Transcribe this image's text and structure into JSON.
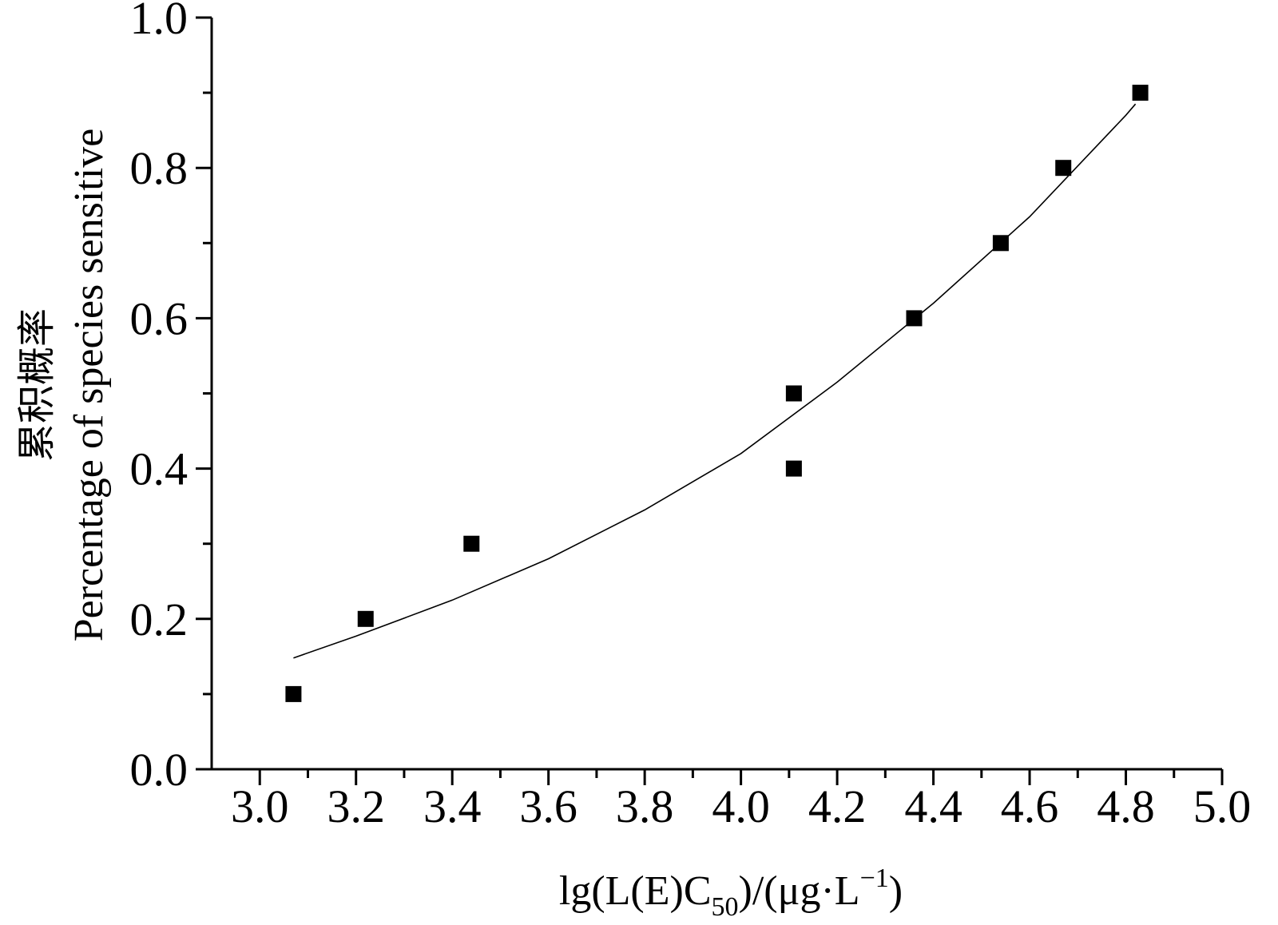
{
  "chart_data": {
    "type": "scatter",
    "xlabel": {
      "prefix": "lg(L(E)C",
      "subscript": "50",
      "suffix": ")/(μg·L",
      "superscript": "−1",
      "end": ")"
    },
    "ylabel": {
      "line1": "累积概率",
      "line2": "Percentage of species sensitive"
    },
    "xlim": [
      2.9,
      5.0
    ],
    "ylim": [
      0.0,
      1.0
    ],
    "x_ticks": [
      "3.0",
      "3.2",
      "3.4",
      "3.6",
      "3.8",
      "4.0",
      "4.2",
      "4.4",
      "4.6",
      "4.8",
      "5.0"
    ],
    "y_ticks": [
      "0.0",
      "0.2",
      "0.4",
      "0.6",
      "0.8",
      "1.0"
    ],
    "grid": false,
    "legend": "none",
    "series": [
      {
        "kind": "points",
        "marker": "square",
        "color": "#000000",
        "x": [
          3.07,
          3.22,
          3.44,
          4.11,
          4.11,
          4.36,
          4.54,
          4.67,
          4.83
        ],
        "y": [
          0.1,
          0.2,
          0.3,
          0.4,
          0.5,
          0.6,
          0.7,
          0.8,
          0.9
        ]
      },
      {
        "kind": "fit-curve",
        "color": "#000000",
        "x": [
          3.07,
          3.2,
          3.4,
          3.6,
          3.8,
          4.0,
          4.2,
          4.4,
          4.6,
          4.8,
          4.82
        ],
        "y": [
          0.148,
          0.177,
          0.225,
          0.28,
          0.345,
          0.42,
          0.515,
          0.62,
          0.735,
          0.87,
          0.885
        ]
      }
    ]
  }
}
